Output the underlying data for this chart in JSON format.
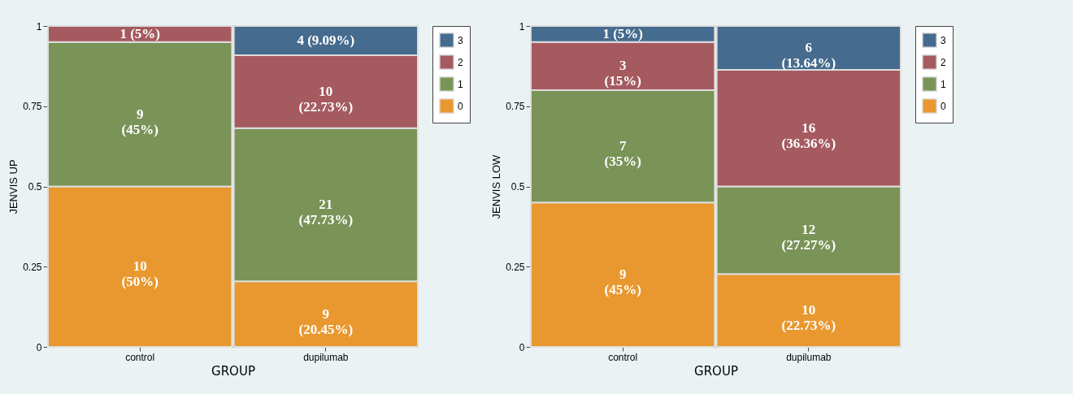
{
  "chart_data": [
    {
      "type": "bar",
      "stacked": true,
      "categories": [
        "control",
        "dupilumab"
      ],
      "xlabel": "GROUP",
      "ylabel": "JENVIS UP",
      "ylim": [
        0,
        1
      ],
      "yticks": [
        0,
        0.25,
        0.5,
        0.75,
        1
      ],
      "legend": "right",
      "grid": false,
      "series": [
        {
          "name": "0",
          "color": "#e8982f",
          "values": [
            0.5,
            0.2045
          ],
          "value_labels": [
            "10 (50%)",
            "9 (20.45%)"
          ]
        },
        {
          "name": "1",
          "color": "#7a9357",
          "values": [
            0.45,
            0.4773
          ],
          "value_labels": [
            "9 (45%)",
            "21 (47.73%)"
          ]
        },
        {
          "name": "2",
          "color": "#a55a5f",
          "values": [
            0.05,
            0.2273
          ],
          "value_labels": [
            "1 (5%)",
            "10 (22.73%)"
          ]
        },
        {
          "name": "3",
          "color": "#456b8e",
          "values": [
            0,
            0.0909
          ],
          "value_labels": [
            null,
            "4 (9.09%)"
          ]
        }
      ]
    },
    {
      "type": "bar",
      "stacked": true,
      "categories": [
        "control",
        "dupilumab"
      ],
      "xlabel": "GROUP",
      "ylabel": "JENVIS LOW",
      "ylim": [
        0,
        1
      ],
      "yticks": [
        0,
        0.25,
        0.5,
        0.75,
        1
      ],
      "legend": "right",
      "grid": false,
      "series": [
        {
          "name": "0",
          "color": "#e8982f",
          "values": [
            0.45,
            0.2273
          ],
          "value_labels": [
            "9 (45%)",
            "10 (22.73%)"
          ]
        },
        {
          "name": "1",
          "color": "#7a9357",
          "values": [
            0.35,
            0.2727
          ],
          "value_labels": [
            "7 (35%)",
            "12 (27.27%)"
          ]
        },
        {
          "name": "2",
          "color": "#a55a5f",
          "values": [
            0.15,
            0.3636
          ],
          "value_labels": [
            "3 (15%)",
            "16 (36.36%)"
          ]
        },
        {
          "name": "3",
          "color": "#456b8e",
          "values": [
            0.05,
            0.1364
          ],
          "value_labels": [
            "1 (5%)",
            "6 (13.64%)"
          ]
        }
      ]
    }
  ]
}
